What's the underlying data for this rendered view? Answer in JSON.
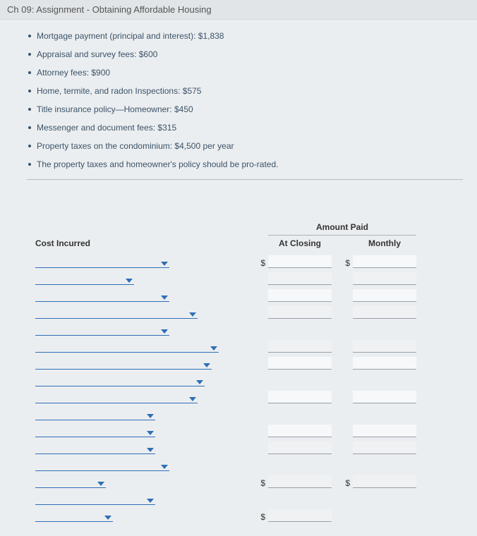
{
  "title": "Ch 09: Assignment - Obtaining Affordable Housing",
  "bullets": [
    "Mortgage payment (principal and interest): $1,838",
    "Appraisal and survey fees: $600",
    "Attorney fees: $900",
    "Home, termite, and radon Inspections: $575",
    "Title insurance policy—Homeowner: $450",
    "Messenger and document fees: $315",
    "Property taxes on the condominium: $4,500 per year",
    "The property taxes and homeowner's policy should be pro-rated."
  ],
  "headers": {
    "cost_incurred": "Cost Incurred",
    "amount_paid": "Amount Paid",
    "at_closing": "At Closing",
    "monthly": "Monthly"
  },
  "dollar": "$",
  "colors": {
    "page_bg": "#ebeef0",
    "title_bg": "#e2e5e7",
    "text": "#3b5268",
    "dropdown_line": "#2e6fb8",
    "input_line": "#9aa0a6"
  },
  "rows": [
    {
      "dd_width": 190,
      "show_closing_dollar": true,
      "show_monthly_dollar": true,
      "has_closing": true,
      "has_monthly": true
    },
    {
      "dd_width": 140,
      "show_closing_dollar": false,
      "show_monthly_dollar": false,
      "has_closing": true,
      "has_monthly": true
    },
    {
      "dd_width": 190,
      "show_closing_dollar": false,
      "show_monthly_dollar": false,
      "has_closing": true,
      "has_monthly": true
    },
    {
      "dd_width": 230,
      "show_closing_dollar": false,
      "show_monthly_dollar": false,
      "has_closing": true,
      "has_monthly": true
    },
    {
      "dd_width": 190,
      "show_closing_dollar": false,
      "show_monthly_dollar": false,
      "has_closing": false,
      "has_monthly": false
    },
    {
      "dd_width": 260,
      "show_closing_dollar": false,
      "show_monthly_dollar": false,
      "has_closing": true,
      "has_monthly": true
    },
    {
      "dd_width": 250,
      "show_closing_dollar": false,
      "show_monthly_dollar": false,
      "has_closing": true,
      "has_monthly": true
    },
    {
      "dd_width": 240,
      "show_closing_dollar": false,
      "show_monthly_dollar": false,
      "has_closing": false,
      "has_monthly": false
    },
    {
      "dd_width": 230,
      "show_closing_dollar": false,
      "show_monthly_dollar": false,
      "has_closing": true,
      "has_monthly": true
    },
    {
      "dd_width": 170,
      "show_closing_dollar": false,
      "show_monthly_dollar": false,
      "has_closing": false,
      "has_monthly": false
    },
    {
      "dd_width": 170,
      "show_closing_dollar": false,
      "show_monthly_dollar": false,
      "has_closing": true,
      "has_monthly": true
    },
    {
      "dd_width": 170,
      "show_closing_dollar": false,
      "show_monthly_dollar": false,
      "has_closing": true,
      "has_monthly": true
    },
    {
      "dd_width": 190,
      "show_closing_dollar": false,
      "show_monthly_dollar": false,
      "has_closing": false,
      "has_monthly": false
    },
    {
      "dd_width": 100,
      "show_closing_dollar": true,
      "show_monthly_dollar": true,
      "has_closing": true,
      "has_monthly": true
    },
    {
      "dd_width": 170,
      "show_closing_dollar": false,
      "show_monthly_dollar": false,
      "has_closing": false,
      "has_monthly": false
    },
    {
      "dd_width": 110,
      "show_closing_dollar": true,
      "show_monthly_dollar": false,
      "has_closing": true,
      "has_monthly": false
    }
  ]
}
